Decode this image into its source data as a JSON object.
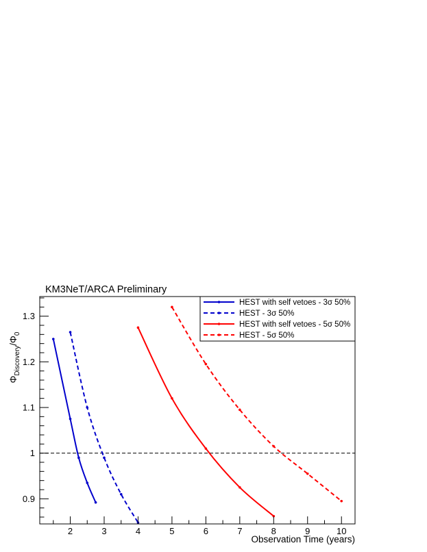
{
  "chart_data": {
    "type": "line",
    "title": "KM3NeT/ARCA Preliminary",
    "xlabel": "Observation Time (years)",
    "ylabel": {
      "main": "Φ",
      "sub": "Discovery",
      "sep": "/Φ",
      "sub2": "0"
    },
    "xlim": [
      1.1,
      10.4
    ],
    "ylim": [
      0.845,
      1.343
    ],
    "x_ticks": [
      2,
      3,
      4,
      5,
      6,
      7,
      8,
      9,
      10
    ],
    "y_ticks": [
      0.9,
      1,
      1.1,
      1.2,
      1.3
    ],
    "y_tick_labels": [
      "0.9",
      "1",
      "1.1",
      "1.2",
      "1.3"
    ],
    "reference_line": {
      "y": 1.0,
      "style": "dashed",
      "color": "#000000"
    },
    "legend_position": "top-right",
    "series": [
      {
        "name": "HEST with self vetoes - 3σ 50%",
        "color": "#0000cc",
        "style": "solid",
        "x": [
          1.5,
          2.0,
          2.25,
          2.5,
          2.75
        ],
        "y": [
          1.25,
          1.075,
          0.99,
          0.935,
          0.892
        ]
      },
      {
        "name": "HEST - 3σ 50%",
        "color": "#0000cc",
        "style": "dashed",
        "x": [
          2.0,
          2.5,
          3.0,
          3.5,
          4.0
        ],
        "y": [
          1.265,
          1.1,
          0.99,
          0.91,
          0.848
        ]
      },
      {
        "name": "HEST with self vetoes - 5σ 50%",
        "color": "#ff0000",
        "style": "solid",
        "x": [
          4.0,
          5.0,
          6.0,
          7.0,
          8.0
        ],
        "y": [
          1.275,
          1.12,
          1.01,
          0.925,
          0.862
        ]
      },
      {
        "name": "HEST - 5σ 50%",
        "color": "#ff0000",
        "style": "dashed",
        "x": [
          5.0,
          6.0,
          7.0,
          8.0,
          9.0,
          10.0
        ],
        "y": [
          1.32,
          1.195,
          1.095,
          1.015,
          0.955,
          0.895
        ]
      }
    ]
  }
}
